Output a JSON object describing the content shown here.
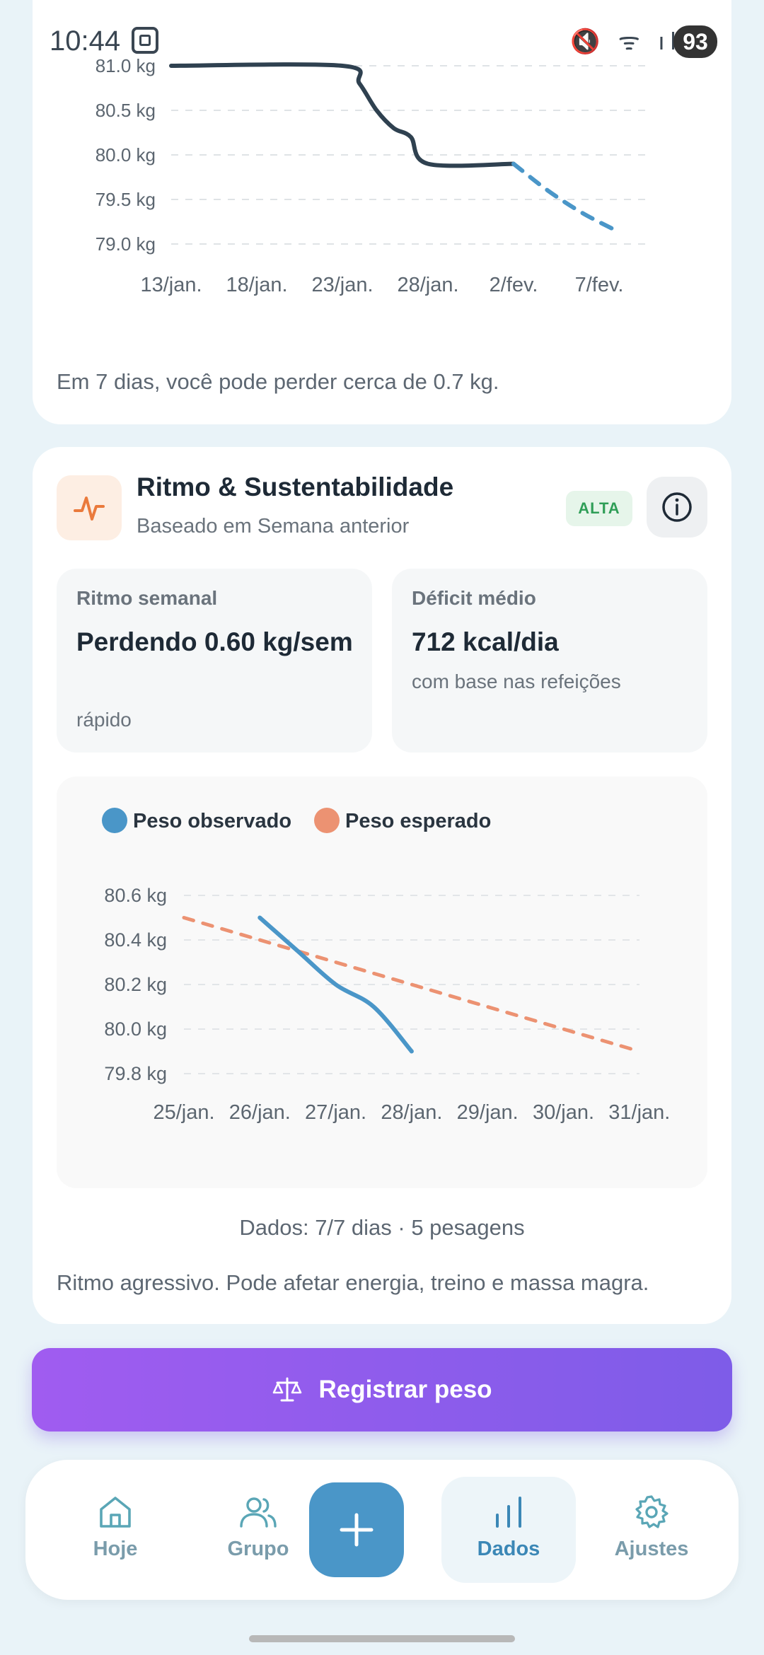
{
  "status": {
    "time": "10:44",
    "battery": "93",
    "icons_text": "🔇 ᯤ ıll"
  },
  "weight_forecast": {
    "note": "Em 7 dias, você pode perder cerca de 0.7 kg.",
    "chart_data": {
      "type": "line",
      "y_ticks": [
        "81.0 kg",
        "80.5 kg",
        "80.0 kg",
        "79.5 kg",
        "79.0 kg"
      ],
      "x_ticks": [
        "13/jan.",
        "18/jan.",
        "23/jan.",
        "28/jan.",
        "2/fev.",
        "7/fev."
      ],
      "ylim": [
        79.0,
        81.0
      ],
      "grid": true,
      "series": [
        {
          "name": "",
          "style": "solid",
          "color": "#2f4150",
          "x": [
            "13/jan.",
            "23/jan.",
            "24/jan.",
            "25/jan.",
            "26/jan.",
            "27/jan.",
            "28/jan.",
            "2/fev."
          ],
          "values": [
            81.0,
            81.0,
            80.8,
            80.5,
            80.3,
            80.2,
            79.9,
            79.9
          ]
        },
        {
          "name": "",
          "style": "dashed",
          "color": "#4a96c8",
          "x": [
            "2/fev.",
            "4/fev.",
            "6/fev.",
            "8/fev."
          ],
          "values": [
            79.9,
            79.6,
            79.35,
            79.15
          ]
        }
      ]
    }
  },
  "ritmo": {
    "title": "Ritmo & Sustentabilidade",
    "subtitle": "Baseado em Semana anterior",
    "badge": "ALTA",
    "weekly_label": "Ritmo semanal",
    "weekly_value": "Perdendo 0.60 kg/sem",
    "weekly_note": "rápido",
    "deficit_label": "Déficit médio",
    "deficit_value": "712 kcal/dia",
    "deficit_note": "com base nas refeições",
    "chart_data": {
      "type": "line",
      "legend": [
        "Peso observado",
        "Peso esperado"
      ],
      "legend_position": "top-left",
      "y_ticks": [
        "80.6 kg",
        "80.4 kg",
        "80.2 kg",
        "80.0 kg",
        "79.8 kg"
      ],
      "x_ticks": [
        "25/jan.",
        "26/jan.",
        "27/jan.",
        "28/jan.",
        "29/jan.",
        "30/jan.",
        "31/jan."
      ],
      "ylim": [
        79.8,
        80.6
      ],
      "grid": true,
      "series": [
        {
          "name": "Peso observado",
          "color": "#4a96c8",
          "style": "solid",
          "x": [
            "26/jan.",
            "26.5/jan.",
            "27/jan.",
            "27.5/jan.",
            "28/jan."
          ],
          "values": [
            80.5,
            80.35,
            80.2,
            80.1,
            79.9
          ]
        },
        {
          "name": "Peso esperado",
          "color": "#ec9272",
          "style": "dashed",
          "x": [
            "25/jan.",
            "26/jan.",
            "27/jan.",
            "28/jan.",
            "29/jan.",
            "30/jan.",
            "31/jan."
          ],
          "values": [
            80.5,
            80.4,
            80.3,
            80.2,
            80.1,
            80.0,
            79.9
          ]
        }
      ]
    },
    "data_info": "Dados: 7/7 dias · 5 pesagens",
    "note": "Ritmo agressivo. Pode afetar energia, treino e massa magra."
  },
  "register_button": "Registrar peso",
  "nav": {
    "items": [
      {
        "id": "hoje",
        "label": "Hoje",
        "icon": "home-icon"
      },
      {
        "id": "grupo",
        "label": "Grupo",
        "icon": "users-icon"
      },
      {
        "id": "dados",
        "label": "Dados",
        "icon": "bar-chart-icon",
        "active": true
      },
      {
        "id": "ajustes",
        "label": "Ajustes",
        "icon": "gear-icon"
      }
    ],
    "fab_icon": "plus-icon"
  },
  "colors": {
    "accent": "#4a96c8",
    "purple": "#8f5cee",
    "orange": "#ec9272",
    "dark_line": "#2f4150"
  }
}
